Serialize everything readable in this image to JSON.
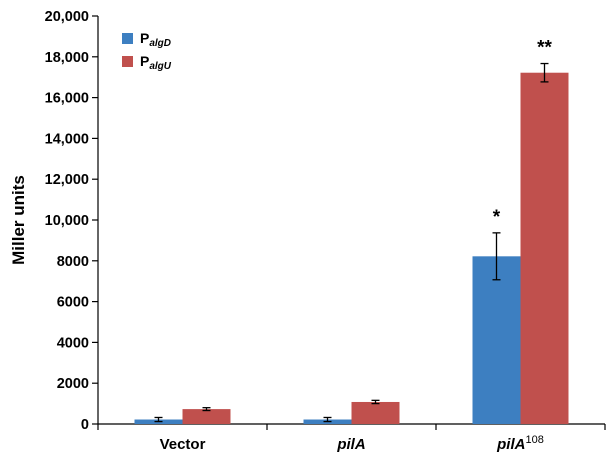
{
  "chart_data": {
    "type": "bar",
    "ylabel": "Miller units",
    "ylim": [
      0,
      20000
    ],
    "yticks": [
      {
        "value": 0,
        "label": "0"
      },
      {
        "value": 2000,
        "label": "2000"
      },
      {
        "value": 4000,
        "label": "4000"
      },
      {
        "value": 6000,
        "label": "6000"
      },
      {
        "value": 8000,
        "label": "8000"
      },
      {
        "value": 10000,
        "label": "10,000"
      },
      {
        "value": 12000,
        "label": "12,000"
      },
      {
        "value": 14000,
        "label": "14,000"
      },
      {
        "value": 16000,
        "label": "16,000"
      },
      {
        "value": 18000,
        "label": "18,000"
      },
      {
        "value": 20000,
        "label": "20,000"
      }
    ],
    "categories": [
      {
        "label": "Vector",
        "italic": false,
        "sup": ""
      },
      {
        "label": "pilA",
        "italic": true,
        "sup": ""
      },
      {
        "label": "pilA",
        "italic": true,
        "sup": "108"
      }
    ],
    "series": [
      {
        "name_main": "P",
        "name_sub": "algD",
        "color": "#3d7fc1",
        "values": [
          220,
          220,
          8220
        ],
        "errors": [
          100,
          100,
          1150
        ],
        "annotations": [
          "",
          "",
          "*"
        ]
      },
      {
        "name_main": "P",
        "name_sub": "algU",
        "color": "#c0504d",
        "values": [
          730,
          1080,
          17220
        ],
        "errors": [
          70,
          80,
          450
        ],
        "annotations": [
          "",
          "",
          "**"
        ]
      }
    ],
    "legend_position": "top-left",
    "grid": false
  }
}
